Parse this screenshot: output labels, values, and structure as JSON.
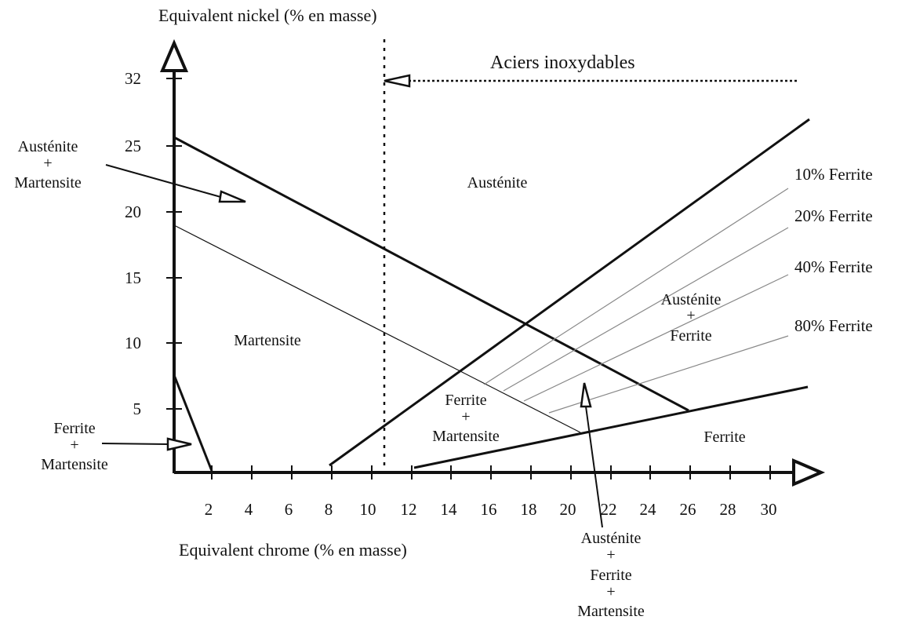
{
  "x_axis": {
    "label": "Equivalent chrome (% en masse)",
    "ticks": [
      "2",
      "4",
      "6",
      "8",
      "10",
      "12",
      "14",
      "16",
      "18",
      "20",
      "22",
      "24",
      "26",
      "28",
      "30"
    ]
  },
  "y_axis": {
    "label": "Equivalent nickel (% en masse)",
    "ticks": [
      "5",
      "10",
      "15",
      "20",
      "25",
      "32"
    ]
  },
  "stainless_label": "Aciers inoxydables",
  "regions": {
    "austenite": "Austénite",
    "martensite": "Martensite",
    "ferrite": "Ferrite",
    "austenite_ferrite": [
      "Austénite",
      "+",
      "Ferrite"
    ],
    "ferrite_martensite": [
      "Ferrite",
      "+",
      "Martensite"
    ]
  },
  "callouts": {
    "austenite_martensite": [
      "Austénite",
      "+",
      "Martensite"
    ],
    "ferrite_martensite_low": [
      "Ferrite",
      "+",
      "Martensite"
    ],
    "austenite_ferrite_martensite": [
      "Austénite",
      "+",
      "Ferrite",
      "+",
      "Martensite"
    ]
  },
  "ferrite_lines": [
    "10% Ferrite",
    "20% Ferrite",
    "40% Ferrite",
    "80% Ferrite"
  ],
  "colors": {
    "ink": "#111111",
    "thin_line": "#888888"
  }
}
